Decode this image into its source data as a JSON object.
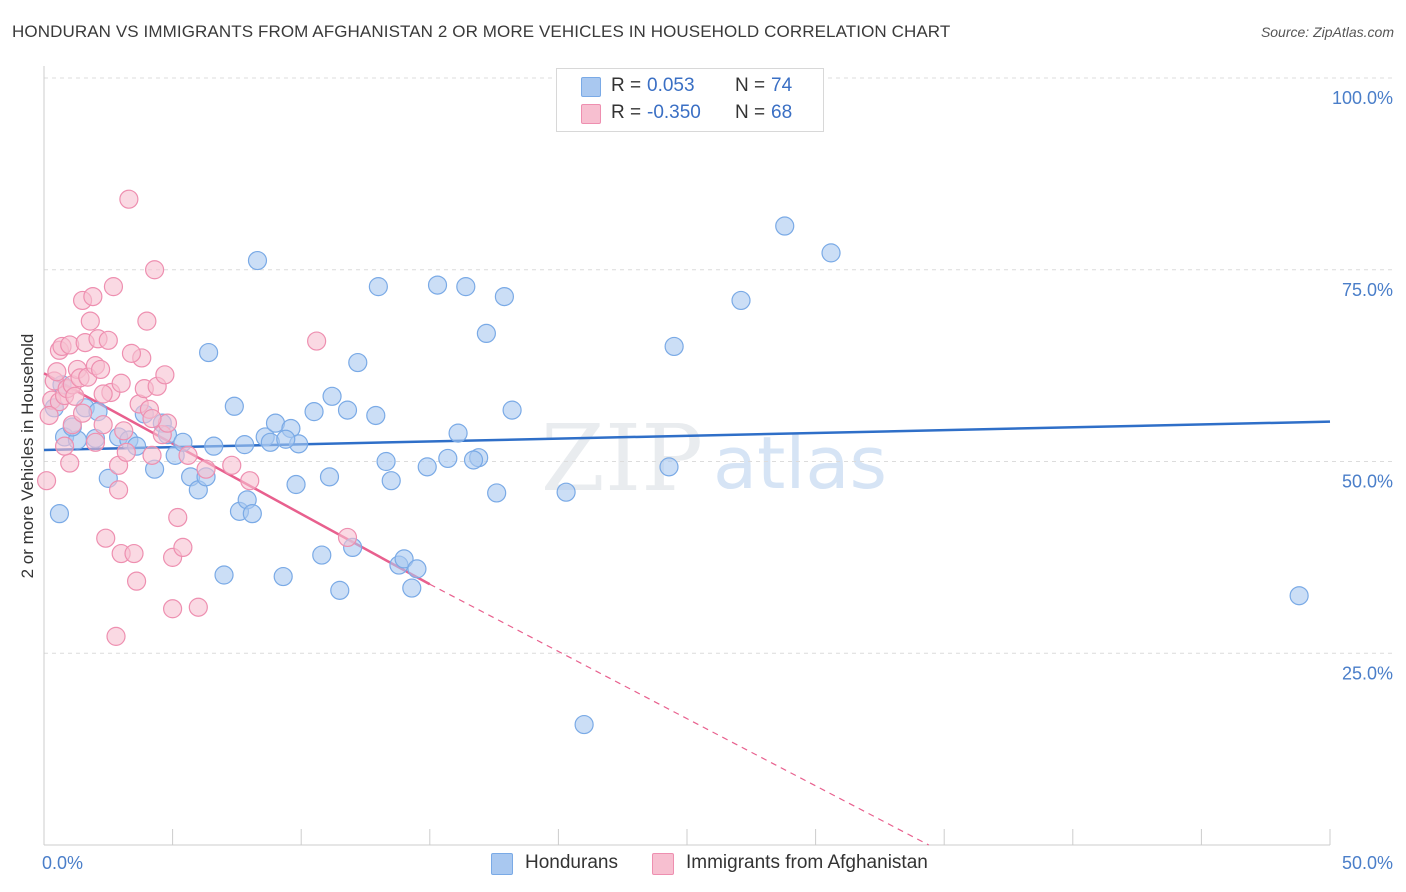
{
  "title": "HONDURAN VS IMMIGRANTS FROM AFGHANISTAN 2 OR MORE VEHICLES IN HOUSEHOLD CORRELATION CHART",
  "source": "Source: ZipAtlas.com",
  "watermark": {
    "zip": "ZIP",
    "atlas": "atlas"
  },
  "legend": {
    "rows": [
      {
        "r_label": "R =",
        "r_value": "0.053",
        "n_label": "N =",
        "n_value": "74",
        "color": "#a9c8f0",
        "border": "#7aaae6"
      },
      {
        "r_label": "R =",
        "r_value": "-0.350",
        "n_label": "N =",
        "n_value": "68",
        "color": "#f7bfd0",
        "border": "#ee8fb0"
      }
    ]
  },
  "bottom_legend": {
    "series1": "Hondurans",
    "series2": "Immigrants from Afghanistan"
  },
  "chart_data": {
    "type": "scatter",
    "title": "HONDURAN VS IMMIGRANTS FROM AFGHANISTAN 2 OR MORE VEHICLES IN HOUSEHOLD CORRELATION CHART",
    "xlabel": "",
    "ylabel": "2 or more Vehicles in Household",
    "xlim": [
      0,
      50
    ],
    "ylim": [
      0,
      100
    ],
    "x_tick_labels": [
      "0.0%",
      "50.0%"
    ],
    "y_tick_labels": [
      "25.0%",
      "50.0%",
      "75.0%",
      "100.0%"
    ],
    "y_ticks": [
      25,
      50,
      75,
      100
    ],
    "grid": true,
    "series": [
      {
        "name": "Hondurans",
        "color": "#7aaae6",
        "fill": "#a9c8f0",
        "trend": {
          "x0": 0,
          "y0": 51.5,
          "x1": 50,
          "y1": 55.2,
          "color": "#2f6fc8"
        },
        "points": [
          [
            0.4,
            57.0
          ],
          [
            0.6,
            43.2
          ],
          [
            0.8,
            53.2
          ],
          [
            1.3,
            52.8
          ],
          [
            1.6,
            57.0
          ],
          [
            2.0,
            53.0
          ],
          [
            2.1,
            56.5
          ],
          [
            2.9,
            53.2
          ],
          [
            3.3,
            52.8
          ],
          [
            3.6,
            52.0
          ],
          [
            3.9,
            56.2
          ],
          [
            4.3,
            49.0
          ],
          [
            4.6,
            55.0
          ],
          [
            4.8,
            53.5
          ],
          [
            5.1,
            50.8
          ],
          [
            5.4,
            52.5
          ],
          [
            5.7,
            48.0
          ],
          [
            6.0,
            46.3
          ],
          [
            6.3,
            48.0
          ],
          [
            6.4,
            64.2
          ],
          [
            7.0,
            35.2
          ],
          [
            7.4,
            57.2
          ],
          [
            7.6,
            43.5
          ],
          [
            7.8,
            52.2
          ],
          [
            7.9,
            45.0
          ],
          [
            8.1,
            43.2
          ],
          [
            8.3,
            76.2
          ],
          [
            8.6,
            53.2
          ],
          [
            8.8,
            52.5
          ],
          [
            9.0,
            55.0
          ],
          [
            9.3,
            35.0
          ],
          [
            9.6,
            54.3
          ],
          [
            9.8,
            47.0
          ],
          [
            9.9,
            52.3
          ],
          [
            10.5,
            56.5
          ],
          [
            10.8,
            37.8
          ],
          [
            11.1,
            48.0
          ],
          [
            11.5,
            33.2
          ],
          [
            11.8,
            56.7
          ],
          [
            12.0,
            38.8
          ],
          [
            12.2,
            62.9
          ],
          [
            12.9,
            56.0
          ],
          [
            13.0,
            72.8
          ],
          [
            13.3,
            50.0
          ],
          [
            13.5,
            47.5
          ],
          [
            13.8,
            36.5
          ],
          [
            14.0,
            37.3
          ],
          [
            14.3,
            33.5
          ],
          [
            14.5,
            36.0
          ],
          [
            14.9,
            49.3
          ],
          [
            15.3,
            73.0
          ],
          [
            15.7,
            50.4
          ],
          [
            16.1,
            53.7
          ],
          [
            16.4,
            72.8
          ],
          [
            16.9,
            50.5
          ],
          [
            17.2,
            66.7
          ],
          [
            17.6,
            45.9
          ],
          [
            17.9,
            71.5
          ],
          [
            18.2,
            56.7
          ],
          [
            20.3,
            46.0
          ],
          [
            21.0,
            15.7
          ],
          [
            24.3,
            49.3
          ],
          [
            24.5,
            65.0
          ],
          [
            27.1,
            71.0
          ],
          [
            28.8,
            80.7
          ],
          [
            30.6,
            77.2
          ],
          [
            48.8,
            32.5
          ],
          [
            0.7,
            60.0
          ],
          [
            1.1,
            54.5
          ],
          [
            2.5,
            47.8
          ],
          [
            6.6,
            52.0
          ],
          [
            9.4,
            52.9
          ],
          [
            11.2,
            58.5
          ],
          [
            16.7,
            50.2
          ]
        ]
      },
      {
        "name": "Immigrants from Afghanistan",
        "color": "#ee8fb0",
        "fill": "#f7bfd0",
        "trend": {
          "x0": 0,
          "y0": 61.5,
          "x1": 15,
          "y1": 34.0,
          "dash_x1": 34.4,
          "dash_y1": 0,
          "color": "#e8608e"
        },
        "points": [
          [
            0.1,
            47.5
          ],
          [
            0.3,
            58.0
          ],
          [
            0.4,
            60.5
          ],
          [
            0.5,
            61.7
          ],
          [
            0.6,
            64.5
          ],
          [
            0.6,
            57.8
          ],
          [
            0.7,
            65.0
          ],
          [
            0.8,
            58.6
          ],
          [
            0.9,
            59.5
          ],
          [
            1.0,
            65.2
          ],
          [
            1.1,
            54.8
          ],
          [
            1.1,
            60.0
          ],
          [
            1.2,
            58.5
          ],
          [
            1.3,
            62.0
          ],
          [
            1.4,
            60.9
          ],
          [
            1.5,
            71.0
          ],
          [
            1.6,
            65.5
          ],
          [
            1.7,
            61.0
          ],
          [
            1.8,
            68.3
          ],
          [
            1.9,
            71.5
          ],
          [
            2.0,
            62.5
          ],
          [
            2.1,
            66.0
          ],
          [
            2.2,
            62.0
          ],
          [
            2.3,
            54.8
          ],
          [
            2.4,
            40.0
          ],
          [
            2.5,
            65.8
          ],
          [
            2.6,
            59.0
          ],
          [
            2.7,
            72.8
          ],
          [
            2.8,
            27.2
          ],
          [
            2.9,
            49.5
          ],
          [
            3.0,
            38.0
          ],
          [
            3.1,
            54.0
          ],
          [
            3.2,
            51.2
          ],
          [
            3.3,
            84.2
          ],
          [
            3.5,
            38.0
          ],
          [
            3.6,
            34.4
          ],
          [
            3.7,
            57.5
          ],
          [
            3.8,
            63.5
          ],
          [
            3.9,
            59.5
          ],
          [
            4.0,
            68.3
          ],
          [
            4.1,
            56.8
          ],
          [
            4.2,
            50.8
          ],
          [
            4.3,
            75.0
          ],
          [
            4.4,
            59.8
          ],
          [
            4.6,
            53.5
          ],
          [
            4.8,
            55.0
          ],
          [
            5.0,
            30.8
          ],
          [
            5.0,
            37.5
          ],
          [
            5.2,
            42.7
          ],
          [
            5.4,
            38.8
          ],
          [
            5.6,
            50.8
          ],
          [
            6.0,
            31.0
          ],
          [
            6.3,
            49.0
          ],
          [
            7.3,
            49.5
          ],
          [
            8.0,
            47.5
          ],
          [
            10.6,
            65.7
          ],
          [
            11.8,
            40.1
          ],
          [
            0.2,
            56.0
          ],
          [
            1.5,
            56.3
          ],
          [
            2.0,
            52.5
          ],
          [
            2.9,
            46.3
          ],
          [
            4.7,
            61.3
          ],
          [
            3.4,
            64.1
          ],
          [
            1.0,
            49.8
          ],
          [
            0.8,
            52.0
          ],
          [
            4.2,
            55.6
          ],
          [
            3.0,
            60.2
          ],
          [
            2.3,
            58.8
          ]
        ]
      }
    ]
  }
}
